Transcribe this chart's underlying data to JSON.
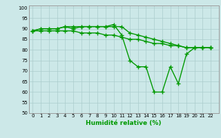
{
  "line1": [
    89,
    90,
    90,
    90,
    91,
    90,
    91,
    91,
    91,
    91,
    92,
    87,
    75,
    72,
    72,
    60,
    60,
    72,
    64,
    78,
    81,
    81,
    81
  ],
  "line2": [
    89,
    90,
    90,
    90,
    91,
    91,
    91,
    91,
    91,
    91,
    91,
    91,
    88,
    87,
    86,
    85,
    84,
    83,
    82,
    81,
    81,
    81,
    81
  ],
  "line3": [
    89,
    89,
    89,
    89,
    89,
    89,
    88,
    88,
    88,
    87,
    87,
    86,
    85,
    85,
    84,
    83,
    83,
    82,
    82,
    81,
    81,
    81,
    81
  ],
  "x": [
    0,
    1,
    2,
    3,
    4,
    5,
    6,
    7,
    8,
    9,
    10,
    11,
    12,
    13,
    14,
    15,
    16,
    17,
    18,
    19,
    20,
    21,
    22
  ],
  "xlim": [
    -0.5,
    23
  ],
  "ylim": [
    50,
    101
  ],
  "yticks": [
    50,
    55,
    60,
    65,
    70,
    75,
    80,
    85,
    90,
    95,
    100
  ],
  "xlabel": "Humidité relative (%)",
  "background_color": "#cce8e8",
  "grid_color": "#aacccc",
  "line_color": "#009900",
  "marker": "+",
  "linewidth": 1.0,
  "markersize": 4,
  "tick_fontsize": 5,
  "label_fontsize": 6.5
}
